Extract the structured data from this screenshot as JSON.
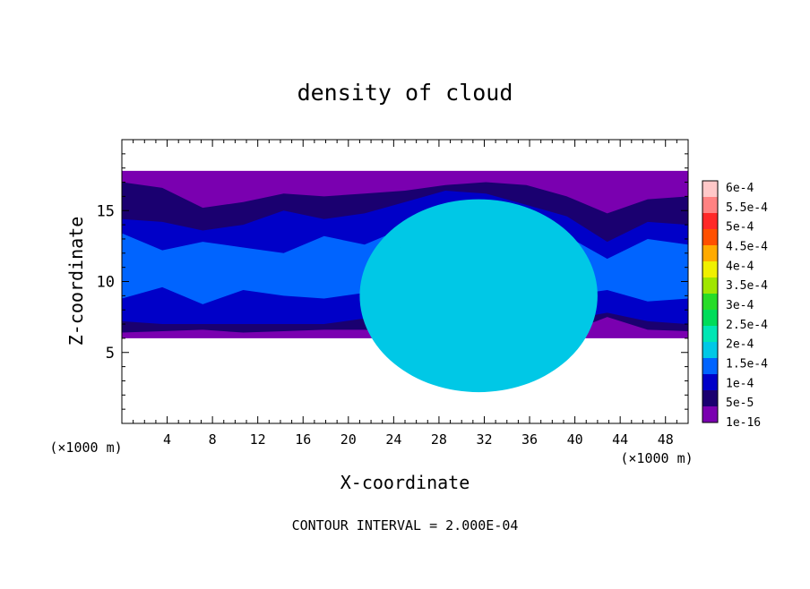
{
  "chart_data": {
    "type": "heatmap",
    "title": "density of cloud",
    "xlabel": "X-coordinate",
    "ylabel": "Z-coordinate",
    "x_unit_label_left": "(×1000 m)",
    "x_unit_label_right": "(×1000 m)",
    "xlim": [
      0,
      50
    ],
    "ylim": [
      0,
      20
    ],
    "x_ticks": [
      4,
      8,
      12,
      16,
      20,
      24,
      28,
      32,
      36,
      40,
      44,
      48
    ],
    "y_ticks": [
      5,
      10,
      15
    ],
    "footer": "CONTOUR INTERVAL = 2.000E-04",
    "colorbar": {
      "labels": [
        "1e-16",
        "5e-5",
        "1e-4",
        "1.5e-4",
        "2e-4",
        "2.5e-4",
        "3e-4",
        "3.5e-4",
        "4e-4",
        "4.5e-4",
        "5e-4",
        "5.5e-4",
        "6e-4"
      ],
      "colors": [
        "#7a00b0",
        "#1a0070",
        "#0000c8",
        "#0064ff",
        "#00c8e6",
        "#00e6b4",
        "#00dc5a",
        "#28dc28",
        "#a0e600",
        "#f0f000",
        "#ffaa00",
        "#ff5000",
        "#ff2828",
        "#ff8282",
        "#ffc8c8"
      ]
    },
    "field": {
      "base_top": 17.8,
      "base_bottom": 6.0,
      "bands": [
        {
          "level": 1,
          "top": [
            17.0,
            16.6,
            15.2,
            15.6,
            16.2,
            16.0,
            16.2,
            16.4,
            16.8,
            17.0,
            16.8,
            16.0,
            14.8,
            15.8,
            16.0
          ],
          "bottom": [
            6.4,
            6.5,
            6.6,
            6.4,
            6.5,
            6.6,
            6.6,
            6.4,
            6.3,
            6.4,
            6.5,
            6.4,
            7.5,
            6.6,
            6.5
          ]
        },
        {
          "level": 2,
          "top": [
            14.4,
            14.2,
            13.6,
            14.0,
            15.0,
            14.4,
            14.8,
            15.6,
            16.4,
            16.2,
            15.4,
            14.6,
            12.8,
            14.2,
            14.0
          ],
          "bottom": [
            7.2,
            7.0,
            7.0,
            7.0,
            7.0,
            7.0,
            7.4,
            7.2,
            7.0,
            7.0,
            7.2,
            7.3,
            7.8,
            7.2,
            7.0
          ]
        },
        {
          "level": 3,
          "top": [
            13.4,
            12.2,
            12.8,
            12.4,
            12.0,
            13.2,
            12.6,
            13.8,
            15.4,
            15.2,
            14.2,
            13.2,
            11.6,
            13.0,
            12.6
          ],
          "bottom": [
            8.8,
            9.6,
            8.4,
            9.4,
            9.0,
            8.8,
            9.2,
            8.2,
            8.0,
            8.0,
            8.6,
            9.0,
            9.4,
            8.6,
            8.8
          ]
        }
      ],
      "dome": {
        "center_x": 31.5,
        "center_z": 9.0,
        "radius_x": 10.5,
        "radius_z": 6.8,
        "ring_level": 4
      }
    }
  }
}
